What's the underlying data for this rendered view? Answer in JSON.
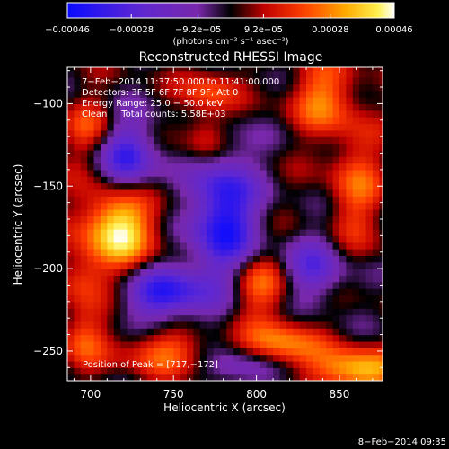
{
  "chart_data": {
    "type": "heatmap",
    "title": "Reconstructed RHESSI Image",
    "xlabel": "Heliocentric X (arcsec)",
    "ylabel": "Heliocentric Y (arcsec)",
    "xlim": [
      686,
      876
    ],
    "ylim": [
      -268,
      -78
    ],
    "x_ticks": [
      700,
      750,
      800,
      850
    ],
    "x_tick_labels": [
      "700",
      "750",
      "800",
      "850"
    ],
    "y_ticks": [
      -100,
      -150,
      -200,
      -250
    ],
    "y_tick_labels": [
      "−100",
      "−150",
      "−200",
      "−250"
    ],
    "colorbar": {
      "min": -0.00046,
      "max": 0.00046,
      "ticks": [
        -0.00046,
        -0.00028,
        -9.2e-05,
        9.2e-05,
        0.00028,
        0.00046
      ],
      "tick_labels": [
        "−0.00046",
        "−0.00028",
        "−9.2e−05",
        "9.2e−05",
        "0.00028",
        "0.00046"
      ],
      "units": "(photons cm⁻² s⁻¹ asec⁻²)"
    },
    "annotations": [
      "7−Feb−2014 11:37:50.000 to 11:41:00.000",
      "Detectors: 3F 5F 6F 7F 8F 9F, Att 0",
      "Energy Range: 25.0 − 50.0 keV",
      "Clean     Total counts: 5.58E+03"
    ],
    "peak_label": "Position of Peak = [717,−172]",
    "peak": [
      717,
      -172
    ],
    "features": [
      {
        "x": 717,
        "y": -172,
        "amp": 1.0,
        "sx": 16,
        "sy": 20
      },
      {
        "x": 780,
        "y": -168,
        "amp": -0.95,
        "sx": 14,
        "sy": 30
      },
      {
        "x": 722,
        "y": -135,
        "amp": -0.85,
        "sx": 13,
        "sy": 18
      },
      {
        "x": 745,
        "y": -215,
        "amp": -0.8,
        "sx": 18,
        "sy": 12
      },
      {
        "x": 860,
        "y": -262,
        "amp": 0.8,
        "sx": 18,
        "sy": 10
      },
      {
        "x": 815,
        "y": -245,
        "amp": 0.6,
        "sx": 16,
        "sy": 10
      },
      {
        "x": 800,
        "y": -210,
        "amp": 0.55,
        "sx": 14,
        "sy": 14
      },
      {
        "x": 745,
        "y": -250,
        "amp": 0.5,
        "sx": 20,
        "sy": 10
      },
      {
        "x": 840,
        "y": -95,
        "amp": 0.55,
        "sx": 14,
        "sy": 16
      },
      {
        "x": 772,
        "y": -92,
        "amp": 0.45,
        "sx": 12,
        "sy": 10
      },
      {
        "x": 695,
        "y": -240,
        "amp": 0.45,
        "sx": 10,
        "sy": 14
      },
      {
        "x": 860,
        "y": -150,
        "amp": 0.45,
        "sx": 12,
        "sy": 28
      },
      {
        "x": 700,
        "y": -115,
        "amp": 0.4,
        "sx": 12,
        "sy": 14
      },
      {
        "x": 835,
        "y": -200,
        "amp": -0.55,
        "sx": 14,
        "sy": 14
      },
      {
        "x": 770,
        "y": -120,
        "amp": 0.45,
        "sx": 10,
        "sy": 12
      },
      {
        "x": 695,
        "y": -205,
        "amp": 0.35,
        "sx": 10,
        "sy": 12
      },
      {
        "x": 790,
        "y": -260,
        "amp": -0.4,
        "sx": 14,
        "sy": 8
      }
    ]
  },
  "footer_date": "8−Feb−2014 09:35"
}
